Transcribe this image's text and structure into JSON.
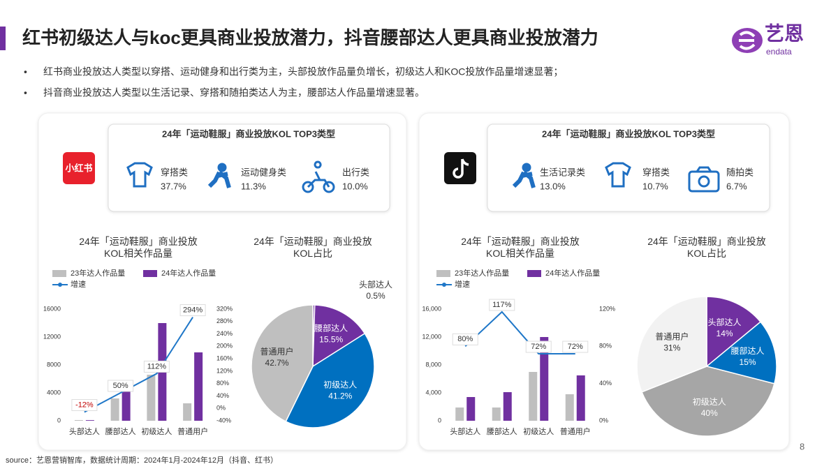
{
  "header": {
    "title": "红书初级达人与koc更具商业投放潜力，抖音腰部达人更具商业投放潜力",
    "logo_text": "艺恩",
    "logo_sub": "endata"
  },
  "bullets": [
    "红书商业投放达人类型以穿搭、运动健身和出行类为主，头部投放作品量负增长，初级达人和KOC投放作品量增速显著；",
    "抖音商业投放达人类型以生活记录、穿搭和随拍类达人为主，腰部达人作品量增速显著。"
  ],
  "panels": [
    {
      "platform_logo": "小红书",
      "top_title": "24年「运动鞋服」商业投放KOL TOP3类型",
      "items": [
        {
          "label": "穿搭类",
          "value": "37.7%"
        },
        {
          "label": "运动健身类",
          "value": "11.3%"
        },
        {
          "label": "出行类",
          "value": "10.0%"
        }
      ]
    },
    {
      "top_title": "24年「运动鞋服」商业投放KOL TOP3类型",
      "items": [
        {
          "label": "生活记录类",
          "value": "13.0%"
        },
        {
          "label": "穿搭类",
          "value": "10.7%"
        },
        {
          "label": "随拍类",
          "value": "6.7%"
        }
      ]
    }
  ],
  "chart_data": [
    {
      "type": "bar",
      "title": "24年「运动鞋服」商业投放KOL相关作品量",
      "categories": [
        "头部达人",
        "腰部达人",
        "初级达人",
        "普通用户"
      ],
      "series": [
        {
          "name": "23年达人作品量",
          "color": "#bfbfbf",
          "values": [
            100,
            3200,
            6600,
            2500
          ]
        },
        {
          "name": "24年达人作品量",
          "color": "#7030a0",
          "values": [
            88,
            4800,
            14000,
            9800
          ]
        },
        {
          "name": "增速",
          "color": "#1f77c8",
          "type": "line",
          "axis": "y2",
          "values": [
            -12,
            50,
            112,
            294
          ],
          "value_labels": [
            "-12%",
            "50%",
            "112%",
            "294%"
          ]
        }
      ],
      "ylim": [
        0,
        16000
      ],
      "yticks": [
        0,
        4000,
        8000,
        12000,
        16000
      ],
      "y2lim": [
        -40,
        320
      ],
      "y2ticks": [
        {
          "value": -40,
          "label": "-40%"
        },
        {
          "value": 0,
          "label": "0%"
        },
        {
          "value": 40,
          "label": "40%"
        },
        {
          "value": 80,
          "label": "80%"
        },
        {
          "value": 120,
          "label": "120%"
        },
        {
          "value": 160,
          "label": "160%"
        },
        {
          "value": 200,
          "label": "200%"
        },
        {
          "value": 240,
          "label": "240%"
        },
        {
          "value": 280,
          "label": "280%"
        },
        {
          "value": 320,
          "label": "320%"
        }
      ]
    },
    {
      "type": "pie",
      "title": "24年「运动鞋服」商业投放KOL占比",
      "categories": [
        "头部达人",
        "腰部达人",
        "初级达人",
        "普通用户"
      ],
      "values": [
        0.5,
        15.5,
        41.2,
        42.7
      ],
      "value_labels": [
        "0.5%",
        "15.5%",
        "41.2%",
        "42.7%"
      ],
      "colors": [
        "#7030a0",
        "#7030a0",
        "#0070c0",
        "#bfbfbf"
      ]
    },
    {
      "type": "bar",
      "title": "24年「运动鞋服」商业投放KOL相关作品量",
      "categories": [
        "头部达人",
        "腰部达人",
        "初级达人",
        "普通用户"
      ],
      "series": [
        {
          "name": "23年达人作品量",
          "color": "#bfbfbf",
          "values": [
            1900,
            1900,
            7000,
            3800
          ]
        },
        {
          "name": "24年达人作品量",
          "color": "#7030a0",
          "values": [
            3400,
            4100,
            12000,
            6500
          ]
        },
        {
          "name": "增速",
          "color": "#1f77c8",
          "type": "line",
          "axis": "y2",
          "values": [
            80,
            117,
            72,
            72
          ],
          "value_labels": [
            "80%",
            "117%",
            "72%",
            "72%"
          ]
        }
      ],
      "ylim": [
        0,
        16000
      ],
      "yticks": [
        0,
        {
          "value": 4000,
          "label": "4,000"
        },
        {
          "value": 8000,
          "label": "8,000"
        },
        {
          "value": 12000,
          "label": "12,000"
        },
        {
          "value": 16000,
          "label": "16,000"
        }
      ],
      "y2lim": [
        0,
        120
      ],
      "y2ticks": [
        {
          "value": 0,
          "label": "0%"
        },
        {
          "value": 40,
          "label": "40%"
        },
        {
          "value": 80,
          "label": "80%"
        },
        {
          "value": 120,
          "label": "120%"
        }
      ]
    },
    {
      "type": "pie",
      "title": "24年「运动鞋服」商业投放KOL占比",
      "categories": [
        "头部达人",
        "腰部达人",
        "初级达人",
        "普通用户"
      ],
      "values": [
        14,
        15,
        40,
        31
      ],
      "value_labels": [
        "14%",
        "15%",
        "40%",
        "31%"
      ],
      "colors": [
        "#7030a0",
        "#0070c0",
        "#a6a6a6",
        "#f2f2f2"
      ]
    }
  ],
  "source": "source：艺恩营销智库，数据统计周期：2024年1月-2024年12月（抖音、红书）",
  "page_number": "8"
}
